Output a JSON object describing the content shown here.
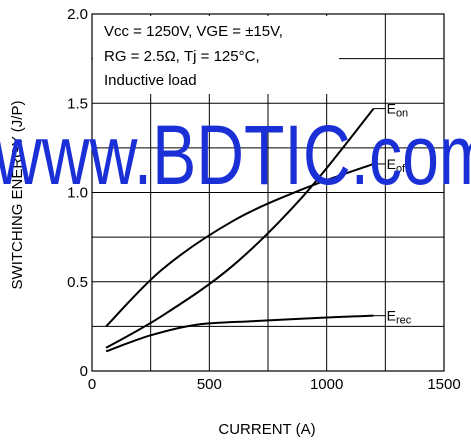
{
  "chart_data": {
    "type": "line",
    "xlabel": "CURRENT (A)",
    "ylabel": "SWITCHING ENERGY (J/P)",
    "xlim": [
      0,
      1500
    ],
    "ylim": [
      0,
      2.0
    ],
    "x_ticks": [
      "0",
      "500",
      "1000",
      "1500"
    ],
    "y_ticks": [
      "0",
      "0.5",
      "1.0",
      "1.5",
      "2.0"
    ],
    "grid": true,
    "conditions": [
      "Vcc = 1250V, VGE = ±15V,",
      "RG = 2.5Ω, Tj = 125°C,",
      "Inductive load"
    ],
    "series": [
      {
        "name": "Eon",
        "x": [
          60,
          300,
          600,
          900,
          1200
        ],
        "y": [
          0.13,
          0.31,
          0.59,
          0.98,
          1.47
        ]
      },
      {
        "name": "Eoff",
        "x": [
          60,
          300,
          600,
          900,
          1200
        ],
        "y": [
          0.25,
          0.57,
          0.84,
          1.02,
          1.16
        ]
      },
      {
        "name": "Erec",
        "x": [
          60,
          250,
          450,
          700,
          1000,
          1200
        ],
        "y": [
          0.11,
          0.2,
          0.26,
          0.28,
          0.3,
          0.31
        ]
      }
    ],
    "series_labels": [
      {
        "main": "E",
        "sub": "on"
      },
      {
        "main": "E",
        "sub": "off"
      },
      {
        "main": "E",
        "sub": "rec"
      }
    ]
  },
  "watermark": "www.BDTIC.com",
  "colors": {
    "watermark": "#1a2fd6",
    "line": "#000000"
  }
}
